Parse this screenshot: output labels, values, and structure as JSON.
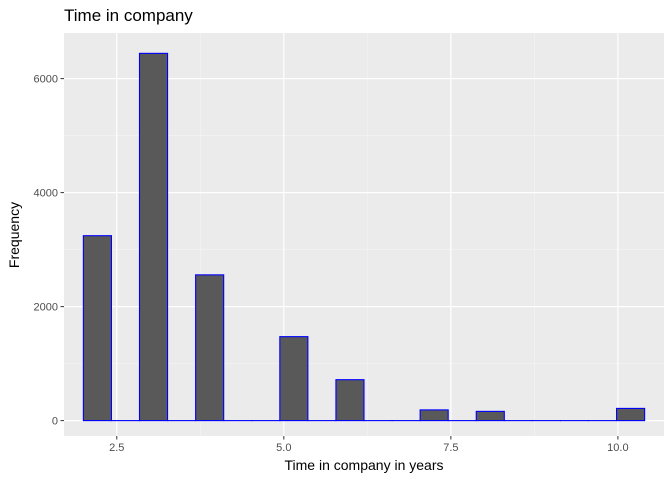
{
  "chart_data": {
    "type": "bar",
    "title": "Time in company",
    "xlabel": "Time in company in years",
    "ylabel": "Frequency",
    "bin_width": 0.42,
    "xlim": [
      1.71,
      10.69
    ],
    "ylim": [
      -270,
      6800
    ],
    "x_ticks": [
      2.5,
      5.0,
      7.5,
      10.0
    ],
    "x_tick_labels": [
      "2.5",
      "5.0",
      "7.5",
      "10.0"
    ],
    "y_ticks": [
      0,
      2000,
      4000,
      6000
    ],
    "y_tick_labels": [
      "0",
      "2000",
      "4000",
      "6000"
    ],
    "bins": [
      {
        "center": 2.21,
        "value": 3244
      },
      {
        "center": 2.63,
        "value": 0
      },
      {
        "center": 3.05,
        "value": 6443
      },
      {
        "center": 3.47,
        "value": 0
      },
      {
        "center": 3.89,
        "value": 2557
      },
      {
        "center": 4.31,
        "value": 0
      },
      {
        "center": 4.73,
        "value": 0
      },
      {
        "center": 5.15,
        "value": 1473
      },
      {
        "center": 5.57,
        "value": 0
      },
      {
        "center": 5.99,
        "value": 718
      },
      {
        "center": 6.41,
        "value": 0
      },
      {
        "center": 6.83,
        "value": 0
      },
      {
        "center": 7.25,
        "value": 188
      },
      {
        "center": 7.67,
        "value": 0
      },
      {
        "center": 8.09,
        "value": 162
      },
      {
        "center": 8.51,
        "value": 0
      },
      {
        "center": 8.93,
        "value": 0
      },
      {
        "center": 9.35,
        "value": 0
      },
      {
        "center": 9.77,
        "value": 0
      },
      {
        "center": 10.19,
        "value": 214
      }
    ],
    "grid": true,
    "colors": {
      "panel": "#ebebeb",
      "grid_major": "#ffffff",
      "grid_minor": "#f5f5f5",
      "bar_fill": "#595959",
      "bar_outline": "#0000ff",
      "tick_text": "#4d4d4d",
      "tick_mark": "#333333"
    }
  }
}
